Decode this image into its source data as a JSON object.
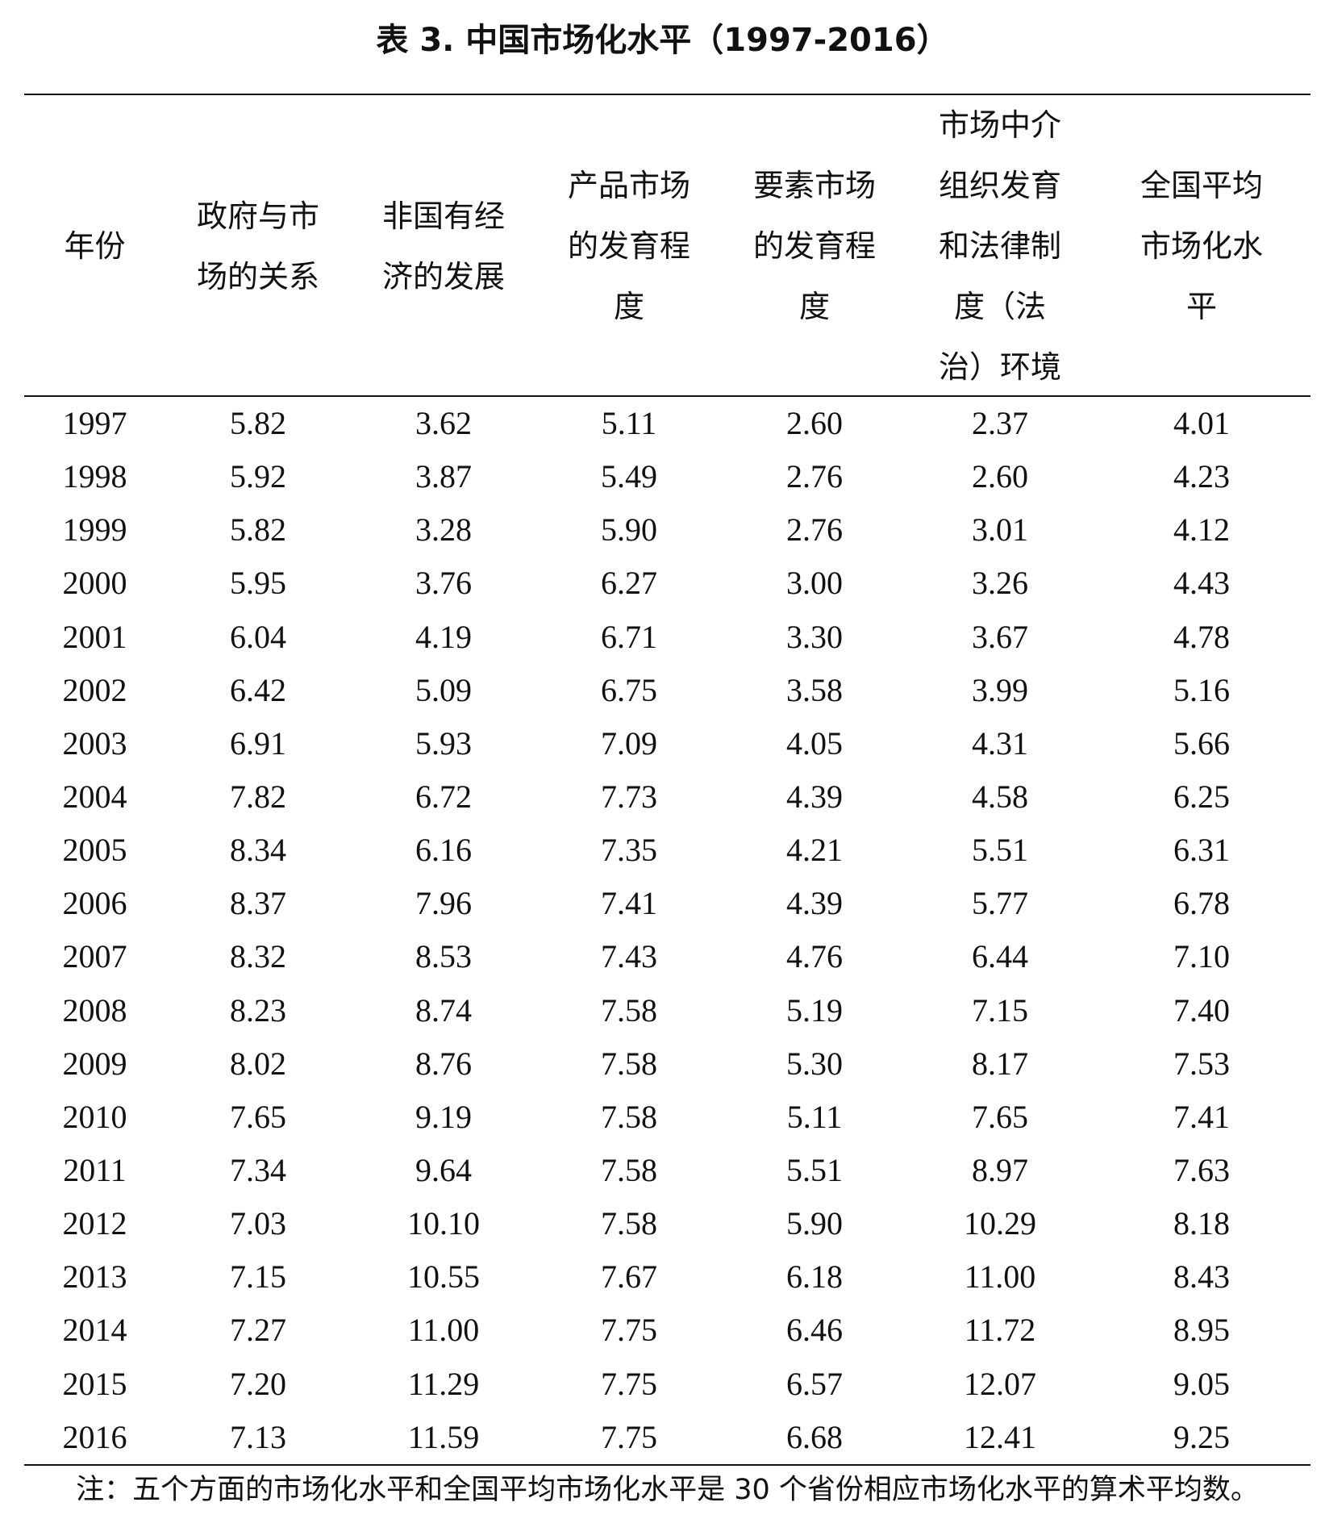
{
  "title": "表 3.  中国市场化水平（1997-2016）",
  "columns": [
    "年份",
    "政府与市\n场的关系",
    "非国有经\n济的发展",
    "产品市场\n的发育程\n度",
    "要素市场\n的发育程\n度",
    "市场中介\n组织发育\n和法律制\n度（法\n治）环境",
    "全国平均\n市场化水\n平"
  ],
  "rows": [
    [
      "1997",
      "5.82",
      "3.62",
      "5.11",
      "2.60",
      "2.37",
      "4.01"
    ],
    [
      "1998",
      "5.92",
      "3.87",
      "5.49",
      "2.76",
      "2.60",
      "4.23"
    ],
    [
      "1999",
      "5.82",
      "3.28",
      "5.90",
      "2.76",
      "3.01",
      "4.12"
    ],
    [
      "2000",
      "5.95",
      "3.76",
      "6.27",
      "3.00",
      "3.26",
      "4.43"
    ],
    [
      "2001",
      "6.04",
      "4.19",
      "6.71",
      "3.30",
      "3.67",
      "4.78"
    ],
    [
      "2002",
      "6.42",
      "5.09",
      "6.75",
      "3.58",
      "3.99",
      "5.16"
    ],
    [
      "2003",
      "6.91",
      "5.93",
      "7.09",
      "4.05",
      "4.31",
      "5.66"
    ],
    [
      "2004",
      "7.82",
      "6.72",
      "7.73",
      "4.39",
      "4.58",
      "6.25"
    ],
    [
      "2005",
      "8.34",
      "6.16",
      "7.35",
      "4.21",
      "5.51",
      "6.31"
    ],
    [
      "2006",
      "8.37",
      "7.96",
      "7.41",
      "4.39",
      "5.77",
      "6.78"
    ],
    [
      "2007",
      "8.32",
      "8.53",
      "7.43",
      "4.76",
      "6.44",
      "7.10"
    ],
    [
      "2008",
      "8.23",
      "8.74",
      "7.58",
      "5.19",
      "7.15",
      "7.40"
    ],
    [
      "2009",
      "8.02",
      "8.76",
      "7.58",
      "5.30",
      "8.17",
      "7.53"
    ],
    [
      "2010",
      "7.65",
      "9.19",
      "7.58",
      "5.11",
      "7.65",
      "7.41"
    ],
    [
      "2011",
      "7.34",
      "9.64",
      "7.58",
      "5.51",
      "8.97",
      "7.63"
    ],
    [
      "2012",
      "7.03",
      "10.10",
      "7.58",
      "5.90",
      "10.29",
      "8.18"
    ],
    [
      "2013",
      "7.15",
      "10.55",
      "7.67",
      "6.18",
      "11.00",
      "8.43"
    ],
    [
      "2014",
      "7.27",
      "11.00",
      "7.75",
      "6.46",
      "11.72",
      "8.95"
    ],
    [
      "2015",
      "7.20",
      "11.29",
      "7.75",
      "6.57",
      "12.07",
      "9.05"
    ],
    [
      "2016",
      "7.13",
      "11.59",
      "7.75",
      "6.68",
      "12.41",
      "9.25"
    ]
  ],
  "note": "注：五个方面的市场化水平和全国平均市场化水平是 30 个省份相应市场化水平的算术平均数。"
}
